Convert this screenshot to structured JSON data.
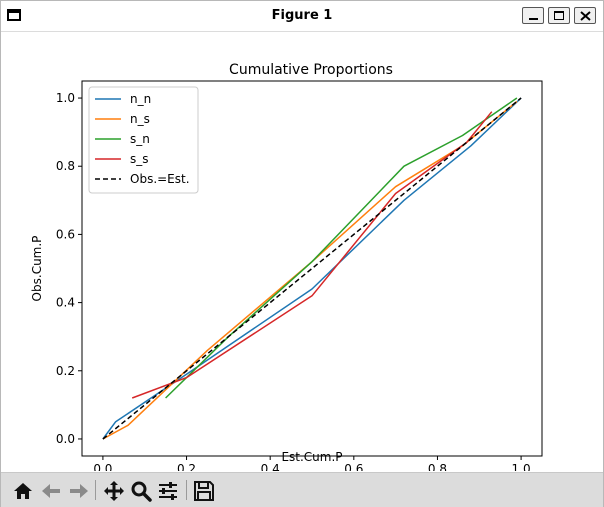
{
  "window": {
    "title": "Figure 1"
  },
  "toolbar": {
    "buttons": [
      {
        "name": "home",
        "icon": "home-icon"
      },
      {
        "name": "back",
        "icon": "arrow-left-icon"
      },
      {
        "name": "forward",
        "icon": "arrow-right-icon"
      },
      {
        "name": "pan",
        "icon": "move-icon"
      },
      {
        "name": "zoom",
        "icon": "magnifier-icon"
      },
      {
        "name": "configure",
        "icon": "sliders-icon"
      },
      {
        "name": "save",
        "icon": "floppy-disk-icon"
      }
    ]
  },
  "chart_data": {
    "type": "line",
    "title": "Cumulative Proportions",
    "xlabel": "Est.Cum.P",
    "ylabel": "Obs.Cum.P",
    "xlim": [
      -0.05,
      1.05
    ],
    "ylim": [
      -0.05,
      1.05
    ],
    "xticks": [
      "0.0",
      "0.2",
      "0.4",
      "0.6",
      "0.8",
      "1.0"
    ],
    "yticks": [
      "0.0",
      "0.2",
      "0.4",
      "0.6",
      "0.8",
      "1.0"
    ],
    "grid": false,
    "legend_position": "top-left",
    "series": [
      {
        "name": "n_n",
        "color": "#1f77b4",
        "style": "solid",
        "x": [
          0.0,
          0.03,
          0.2,
          0.5,
          0.72,
          0.88,
          1.0
        ],
        "y": [
          0.0,
          0.05,
          0.19,
          0.44,
          0.7,
          0.86,
          1.0
        ]
      },
      {
        "name": "n_s",
        "color": "#ff7f0e",
        "style": "solid",
        "x": [
          0.0,
          0.06,
          0.25,
          0.5,
          0.7,
          0.86,
          0.99
        ],
        "y": [
          0.0,
          0.04,
          0.26,
          0.52,
          0.74,
          0.86,
          0.99
        ]
      },
      {
        "name": "s_n",
        "color": "#2ca02c",
        "style": "solid",
        "x": [
          0.15,
          0.3,
          0.5,
          0.72,
          0.86,
          0.99
        ],
        "y": [
          0.12,
          0.3,
          0.52,
          0.8,
          0.89,
          1.0
        ]
      },
      {
        "name": "s_s",
        "color": "#d62728",
        "style": "solid",
        "x": [
          0.07,
          0.2,
          0.5,
          0.7,
          0.87,
          0.93
        ],
        "y": [
          0.12,
          0.18,
          0.42,
          0.72,
          0.87,
          0.96
        ]
      },
      {
        "name": "Obs.=Est.",
        "color": "#000000",
        "style": "dashed",
        "x": [
          0.0,
          1.0
        ],
        "y": [
          0.0,
          1.0
        ]
      }
    ]
  }
}
